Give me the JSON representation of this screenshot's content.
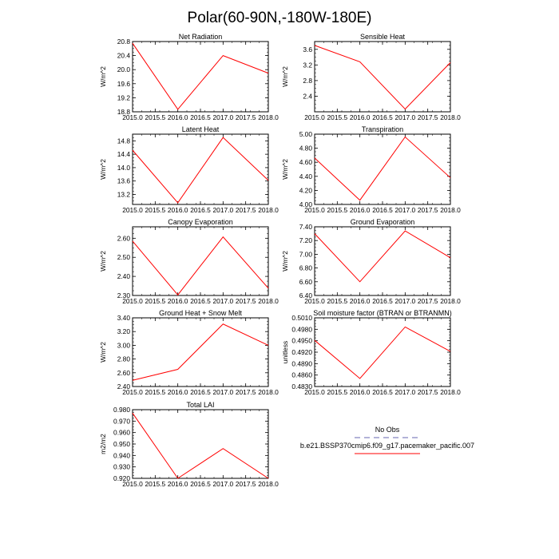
{
  "page": {
    "title": "Polar(60-90N,-180W-180E)"
  },
  "style": {
    "series_color": "#ff0000",
    "obs_color": "#9999cc",
    "axis_color": "#000000"
  },
  "chart_data": [
    {
      "type": "line",
      "title": "Net Radiation",
      "ylabel": "W/m^2",
      "x": [
        2015,
        2016,
        2017,
        2018
      ],
      "xlim": [
        2015,
        2018
      ],
      "xticks": [
        "2015.0",
        "2015.5",
        "2016.0",
        "2016.5",
        "2017.0",
        "2017.5",
        "2018.0"
      ],
      "ylim": [
        18.8,
        20.8
      ],
      "yticks": [
        "18.8",
        "19.2",
        "19.6",
        "20.0",
        "20.4",
        "20.8"
      ],
      "series": [
        {
          "values": [
            20.75,
            18.87,
            20.4,
            19.9
          ]
        }
      ]
    },
    {
      "type": "line",
      "title": "Sensible Heat",
      "ylabel": "W/m^2",
      "x": [
        2015,
        2016,
        2017,
        2018
      ],
      "xlim": [
        2015,
        2018
      ],
      "xticks": [
        "2015.0",
        "2015.5",
        "2016.0",
        "2016.5",
        "2017.0",
        "2017.5",
        "2018.0"
      ],
      "ylim": [
        2.0,
        3.8
      ],
      "yticks": [
        "2.4",
        "2.8",
        "3.2",
        "3.6"
      ],
      "series": [
        {
          "values": [
            3.7,
            3.28,
            2.07,
            3.26
          ]
        }
      ]
    },
    {
      "type": "line",
      "title": "Latent Heat",
      "ylabel": "W/m^2",
      "x": [
        2015,
        2016,
        2017,
        2018
      ],
      "xlim": [
        2015,
        2018
      ],
      "xticks": [
        "2015.0",
        "2015.5",
        "2016.0",
        "2016.5",
        "2017.0",
        "2017.5",
        "2018.0"
      ],
      "ylim": [
        12.9,
        15.0
      ],
      "yticks": [
        "13.2",
        "13.6",
        "14.0",
        "14.4",
        "14.8"
      ],
      "series": [
        {
          "values": [
            14.52,
            12.95,
            14.9,
            13.62
          ]
        }
      ]
    },
    {
      "type": "line",
      "title": "Transpiration",
      "ylabel": "W/m^2",
      "x": [
        2015,
        2016,
        2017,
        2018
      ],
      "xlim": [
        2015,
        2018
      ],
      "xticks": [
        "2015.0",
        "2015.5",
        "2016.0",
        "2016.5",
        "2017.0",
        "2017.5",
        "2018.0"
      ],
      "ylim": [
        4.0,
        5.0
      ],
      "yticks": [
        "4.00",
        "4.20",
        "4.40",
        "4.60",
        "4.80",
        "5.00"
      ],
      "series": [
        {
          "values": [
            4.66,
            4.06,
            4.96,
            4.38
          ]
        }
      ]
    },
    {
      "type": "line",
      "title": "Canopy Evaporation",
      "ylabel": "W/m^2",
      "x": [
        2015,
        2016,
        2017,
        2018
      ],
      "xlim": [
        2015,
        2018
      ],
      "xticks": [
        "2015.0",
        "2015.5",
        "2016.0",
        "2016.5",
        "2017.0",
        "2017.5",
        "2018.0"
      ],
      "ylim": [
        2.3,
        2.66
      ],
      "yticks": [
        "2.30",
        "2.40",
        "2.50",
        "2.60"
      ],
      "series": [
        {
          "values": [
            2.585,
            2.303,
            2.607,
            2.338
          ]
        }
      ]
    },
    {
      "type": "line",
      "title": "Ground Evaporation",
      "ylabel": "W/m^2",
      "x": [
        2015,
        2016,
        2017,
        2018
      ],
      "xlim": [
        2015,
        2018
      ],
      "xticks": [
        "2015.0",
        "2015.5",
        "2016.0",
        "2016.5",
        "2017.0",
        "2017.5",
        "2018.0"
      ],
      "ylim": [
        6.4,
        7.4
      ],
      "yticks": [
        "6.40",
        "6.60",
        "6.80",
        "7.00",
        "7.20",
        "7.40"
      ],
      "series": [
        {
          "values": [
            7.3,
            6.6,
            7.34,
            6.95
          ]
        }
      ]
    },
    {
      "type": "line",
      "title": "Ground Heat + Snow Melt",
      "ylabel": "W/m^2",
      "x": [
        2015,
        2016,
        2017,
        2018
      ],
      "xlim": [
        2015,
        2018
      ],
      "xticks": [
        "2015.0",
        "2015.5",
        "2016.0",
        "2016.5",
        "2017.0",
        "2017.5",
        "2018.0"
      ],
      "ylim": [
        2.4,
        3.4
      ],
      "yticks": [
        "2.40",
        "2.60",
        "2.80",
        "3.00",
        "3.20",
        "3.40"
      ],
      "series": [
        {
          "values": [
            2.49,
            2.65,
            3.31,
            3.0
          ]
        }
      ]
    },
    {
      "type": "line",
      "title": "Soil moisture factor (BTRAN or BTRANMN)",
      "ylabel": "unitless",
      "x": [
        2015,
        2016,
        2017,
        2018
      ],
      "xlim": [
        2015,
        2018
      ],
      "xticks": [
        "2015.0",
        "2015.5",
        "2016.0",
        "2016.5",
        "2017.0",
        "2017.5",
        "2018.0"
      ],
      "ylim": [
        0.483,
        0.501
      ],
      "yticks": [
        "0.4830",
        "0.4860",
        "0.4890",
        "0.4920",
        "0.4950",
        "0.4980",
        "0.5010"
      ],
      "series": [
        {
          "values": [
            0.4951,
            0.4851,
            0.4986,
            0.4922
          ]
        }
      ]
    },
    {
      "type": "line",
      "title": "Total LAI",
      "ylabel": "m2/m2",
      "x": [
        2015,
        2016,
        2017,
        2018
      ],
      "xlim": [
        2015,
        2018
      ],
      "xticks": [
        "2015.0",
        "2015.5",
        "2016.0",
        "2016.5",
        "2017.0",
        "2017.5",
        "2018.0"
      ],
      "ylim": [
        0.92,
        0.98
      ],
      "yticks": [
        "0.920",
        "0.930",
        "0.940",
        "0.950",
        "0.960",
        "0.970",
        "0.980"
      ],
      "series": [
        {
          "values": [
            0.977,
            0.92,
            0.946,
            0.92
          ]
        }
      ]
    }
  ],
  "legend": {
    "placement": "bottom-right",
    "entries": [
      {
        "label": "No Obs",
        "color": "#9999cc",
        "dash": "dashed"
      },
      {
        "label": "b.e21.BSSP370cmip6.f09_g17.pacemaker_pacific.007",
        "color": "#ff0000",
        "dash": "solid"
      }
    ]
  }
}
